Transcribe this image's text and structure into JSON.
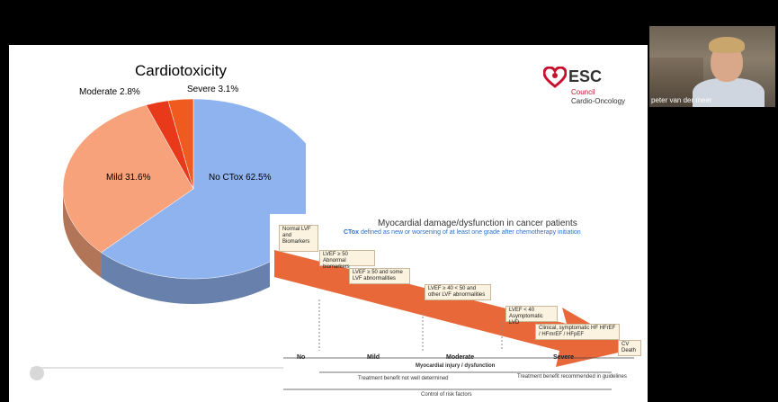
{
  "pie": {
    "title": "Cardiotoxicity",
    "slices": [
      {
        "label": "No CTox 62.5%",
        "value": 62.5,
        "color": "#8fb3ef"
      },
      {
        "label": "Mild 31.6%",
        "value": 31.6,
        "color": "#f7a27a"
      },
      {
        "label": "Moderate 2.8%",
        "value": 2.8,
        "color": "#e8391b"
      },
      {
        "label": "Severe 3.1%",
        "value": 3.1,
        "color": "#f05a1e"
      }
    ]
  },
  "logo": {
    "name": "ESC",
    "council": "Council",
    "subtitle": "Cardio-Oncology"
  },
  "webcam": {
    "name": "peter van der meer"
  },
  "diagram": {
    "title": "Myocardial damage/dysfunction in cancer patients",
    "subtitle_bold": "CTox",
    "subtitle": "defined as new or worsening of at least one grade after chemotherapy initiation",
    "boxes": [
      "Normal LVF and Biomarkers",
      "LVEF ≥ 50 Abnormal biomarkers",
      "LVEF ≥ 50 and some LVF abnormalities",
      "LVEF ≥ 40 < 50 and other LVF abnormalities",
      "LVEF < 40 Asymptomatic LVD",
      "Clinical, symptomatic HF HFrEF / HFmrEF / HFpEF",
      "CV Death"
    ],
    "severity": [
      "No",
      "Mild",
      "Moderate",
      "Severe"
    ],
    "axis_label": "Myocardial injury / dysfunction",
    "note_left": "Treatment benefit not well determined",
    "note_right": "Treatment benefit recommended in guidelines",
    "note_bottom": "Control of risk factors"
  }
}
